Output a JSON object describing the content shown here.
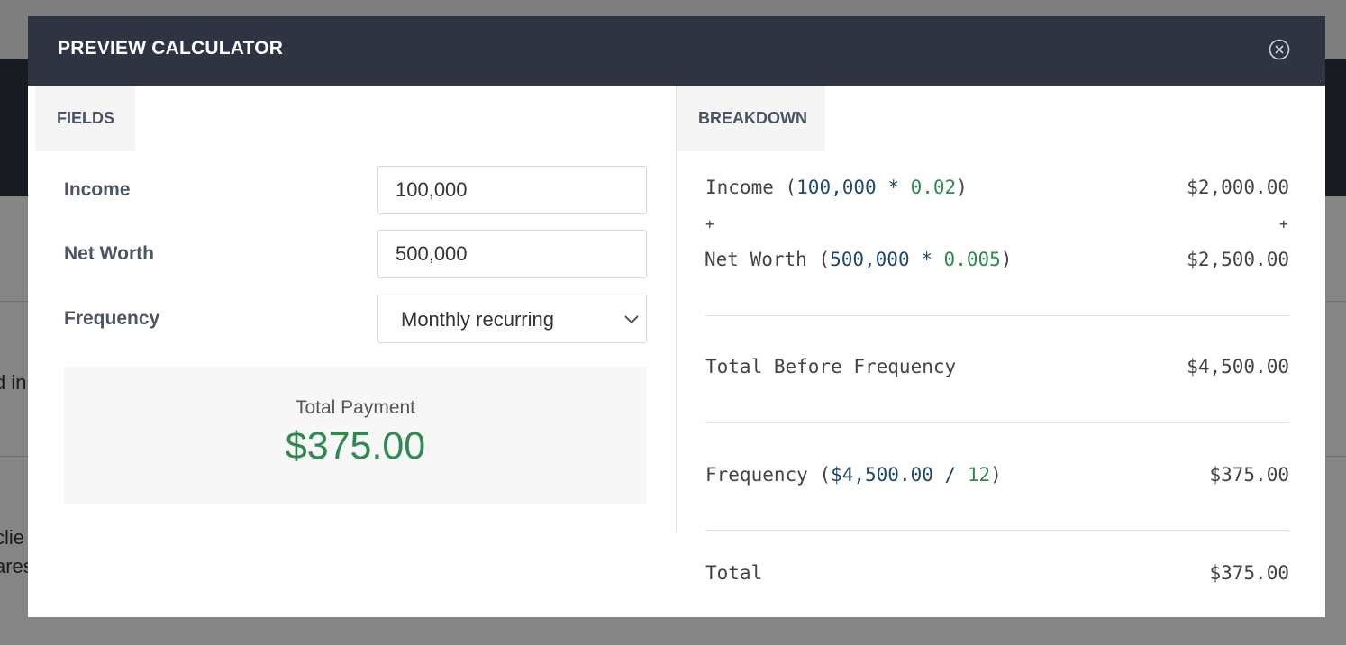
{
  "background": {
    "fragment_1": "d in",
    "fragment_2": "clie",
    "fragment_3": "ares"
  },
  "modal": {
    "title": "PREVIEW CALCULATOR",
    "close_icon": "close-circle-icon"
  },
  "fields_panel": {
    "tab_label": "FIELDS",
    "fields": [
      {
        "label": "Income",
        "value": "100,000"
      },
      {
        "label": "Net Worth",
        "value": "500,000"
      }
    ],
    "frequency": {
      "label": "Frequency",
      "selected": "Monthly recurring"
    },
    "total": {
      "label": "Total Payment",
      "value": "$375.00"
    }
  },
  "breakdown_panel": {
    "tab_label": "BREAKDOWN",
    "income": {
      "name": "Income",
      "open": " (",
      "base": "100,000",
      "op": " * ",
      "rate": "0.02",
      "close": ")",
      "amount": "$2,000.00"
    },
    "plus": "+",
    "net_worth": {
      "name": "Net Worth",
      "open": " (",
      "base": "500,000",
      "op": " * ",
      "rate": "0.005",
      "close": ")",
      "amount": "$2,500.00"
    },
    "total_before": {
      "name": "Total Before Frequency",
      "amount": "$4,500.00"
    },
    "frequency": {
      "name": "Frequency",
      "open": " (",
      "base": "$4,500.00",
      "op": " / ",
      "divisor": "12",
      "close": ")",
      "amount": "$375.00"
    },
    "total": {
      "name": "Total",
      "amount": "$375.00"
    }
  },
  "colors": {
    "header_bg": "#2e3442",
    "accent_green": "#2f8a4f",
    "accent_blue": "#1e4a6b"
  }
}
